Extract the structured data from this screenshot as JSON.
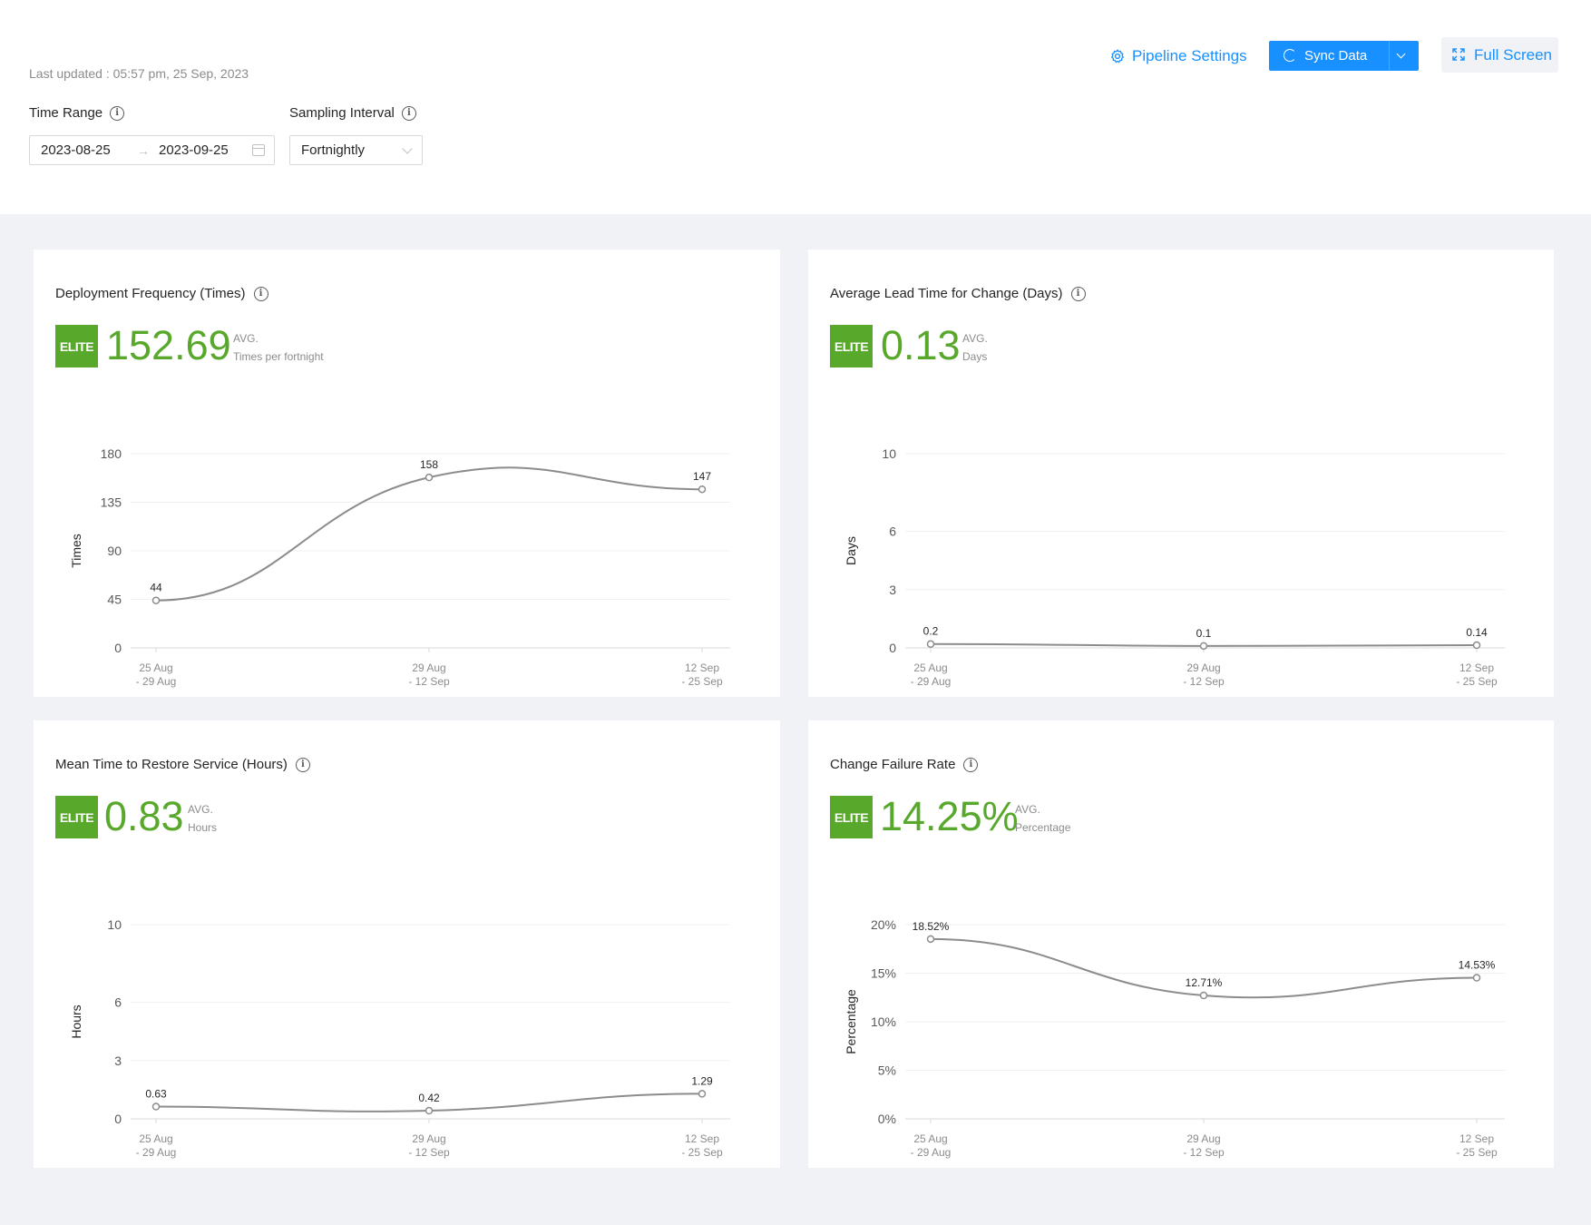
{
  "header": {
    "last_updated": "Last updated : 05:57 pm, 25 Sep, 2023",
    "time_range_label": "Time Range",
    "sampling_interval_label": "Sampling Interval",
    "date_start": "2023-08-25",
    "date_arrow": "→",
    "date_end": "2023-09-25",
    "sampling_interval_value": "Fortnightly",
    "pipeline_settings_label": "Pipeline Settings",
    "sync_data_label": "Sync Data",
    "full_screen_label": "Full Screen",
    "accent_color": "#1890ff"
  },
  "cards": [
    {
      "title": "Deployment Frequency (Times)",
      "badge": "ELITE",
      "value": "152.69",
      "avg_label": "AVG.",
      "unit": "Times per fortnight"
    },
    {
      "title": "Average Lead Time for Change (Days)",
      "badge": "ELITE",
      "value": "0.13",
      "avg_label": "AVG.",
      "unit": "Days"
    },
    {
      "title": "Mean Time to Restore Service (Hours)",
      "badge": "ELITE",
      "value": "0.83",
      "avg_label": "AVG.",
      "unit": "Hours"
    },
    {
      "title": "Change Failure Rate",
      "badge": "ELITE",
      "value": "14.25%",
      "avg_label": "AVG.",
      "unit": "Percentage"
    }
  ],
  "elite_color": "#58a82c",
  "chart_data": [
    {
      "type": "line",
      "ylabel": "Times",
      "categories": [
        [
          "25 Aug",
          "- 29 Aug"
        ],
        [
          "29 Aug",
          "- 12 Sep"
        ],
        [
          "12 Sep",
          "- 25 Sep"
        ]
      ],
      "values": [
        44,
        158,
        147
      ],
      "value_labels": [
        "44",
        "158",
        "147"
      ],
      "yticks": [
        0,
        45,
        90,
        135,
        180
      ],
      "ytick_labels": [
        "0",
        "45",
        "90",
        "135",
        "180"
      ],
      "ylim": [
        0,
        180
      ]
    },
    {
      "type": "line",
      "ylabel": "Days",
      "categories": [
        [
          "25 Aug",
          "- 29 Aug"
        ],
        [
          "29 Aug",
          "- 12 Sep"
        ],
        [
          "12 Sep",
          "- 25 Sep"
        ]
      ],
      "values": [
        0.2,
        0.1,
        0.14
      ],
      "value_labels": [
        "0.2",
        "0.1",
        "0.14"
      ],
      "yticks": [
        0,
        3,
        6,
        10
      ],
      "ytick_labels": [
        "0",
        "3",
        "6",
        "10"
      ],
      "ylim": [
        0,
        10
      ]
    },
    {
      "type": "line",
      "ylabel": "Hours",
      "categories": [
        [
          "25 Aug",
          "- 29 Aug"
        ],
        [
          "29 Aug",
          "- 12 Sep"
        ],
        [
          "12 Sep",
          "- 25 Sep"
        ]
      ],
      "values": [
        0.63,
        0.42,
        1.29
      ],
      "value_labels": [
        "0.63",
        "0.42",
        "1.29"
      ],
      "yticks": [
        0,
        3,
        6,
        10
      ],
      "ytick_labels": [
        "0",
        "3",
        "6",
        "10"
      ],
      "ylim": [
        0,
        10
      ]
    },
    {
      "type": "line",
      "ylabel": "Percentage",
      "categories": [
        [
          "25 Aug",
          "- 29 Aug"
        ],
        [
          "29 Aug",
          "- 12 Sep"
        ],
        [
          "12 Sep",
          "- 25 Sep"
        ]
      ],
      "values": [
        18.52,
        12.71,
        14.53
      ],
      "value_labels": [
        "18.52%",
        "12.71%",
        "14.53%"
      ],
      "yticks": [
        0,
        5,
        10,
        15,
        20
      ],
      "ytick_labels": [
        "0%",
        "5%",
        "10%",
        "15%",
        "20%"
      ],
      "ylim": [
        0,
        20
      ]
    }
  ]
}
